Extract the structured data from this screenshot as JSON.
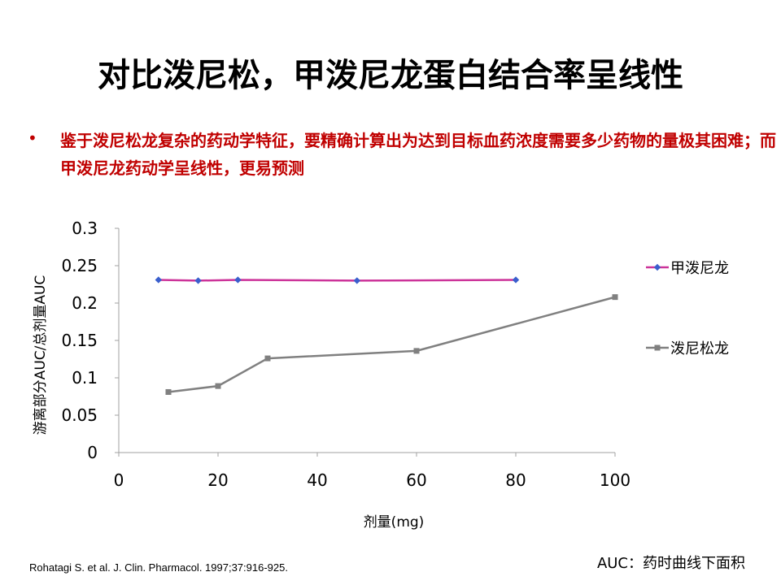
{
  "slide": {
    "title": "对比泼尼松，甲泼尼龙蛋白结合率呈线性",
    "bullet_symbol": "•",
    "bullet_text": "鉴于泼尼松龙复杂的药动学特征，要精确计算出为达到目标血药浓度需要多少药物的量极其困难；而甲泼尼龙药动学呈线性，更易预测",
    "citation": "Rohatagi S. et al. J. Clin. Pharmacol. 1997;37:916-925.",
    "auc_note": "AUC：药时曲线下面积"
  },
  "colors": {
    "bullet_text": "#c00000",
    "series_1_line": "#cc3399",
    "series_1_marker": "#3a5fcd",
    "series_2": "#808080",
    "axis": "#a0a0a0"
  },
  "chart_data": {
    "type": "scatter",
    "xlabel": "剂量(mg)",
    "ylabel": "游离部分AUC/总剂量AUC",
    "xlim": [
      0,
      100
    ],
    "ylim": [
      0,
      0.3
    ],
    "x_ticks": [
      "0",
      "20",
      "40",
      "60",
      "80",
      "100"
    ],
    "y_ticks": [
      "0",
      "0.05",
      "0.1",
      "0.15",
      "0.2",
      "0.25",
      "0.3"
    ],
    "grid": false,
    "legend_position": "right",
    "series": [
      {
        "name": "甲泼尼龙",
        "marker": "diamond",
        "points": [
          [
            8,
            0.231
          ],
          [
            16,
            0.23
          ],
          [
            24,
            0.231
          ],
          [
            48,
            0.23
          ],
          [
            80,
            0.231
          ]
        ]
      },
      {
        "name": "泼尼松龙",
        "marker": "square",
        "points": [
          [
            10,
            0.081
          ],
          [
            20,
            0.089
          ],
          [
            30,
            0.126
          ],
          [
            60,
            0.136
          ],
          [
            100,
            0.208
          ]
        ]
      }
    ]
  }
}
